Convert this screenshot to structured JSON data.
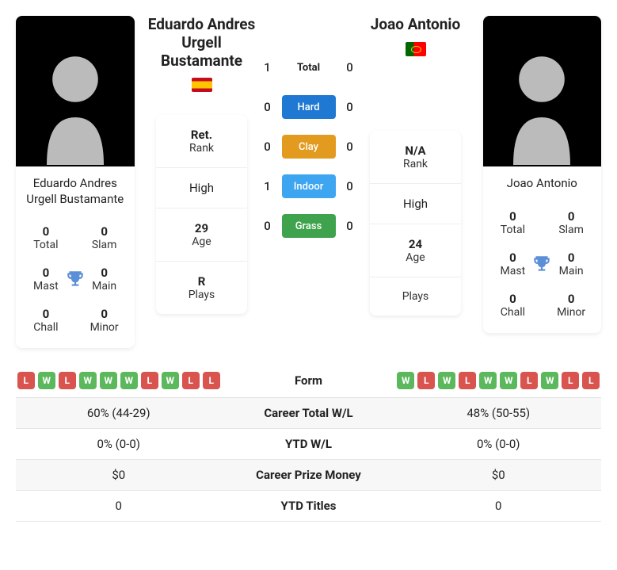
{
  "player1": {
    "name": "Eduardo Andres Urgell Bustamante",
    "flag": "es",
    "titles": {
      "total": {
        "val": "0",
        "lbl": "Total"
      },
      "slam": {
        "val": "0",
        "lbl": "Slam"
      },
      "mast": {
        "val": "0",
        "lbl": "Mast"
      },
      "main": {
        "val": "0",
        "lbl": "Main"
      },
      "chall": {
        "val": "0",
        "lbl": "Chall"
      },
      "minor": {
        "val": "0",
        "lbl": "Minor"
      }
    },
    "stats": {
      "rank_val": "Ret.",
      "rank_lbl": "Rank",
      "high": "High",
      "age_val": "29",
      "age_lbl": "Age",
      "plays_val": "R",
      "plays_lbl": "Plays"
    },
    "form": [
      "L",
      "W",
      "L",
      "W",
      "W",
      "W",
      "L",
      "W",
      "L",
      "L"
    ],
    "trophy_color": "#5b8fd8"
  },
  "player2": {
    "name": "Joao Antonio",
    "flag": "pt",
    "titles": {
      "total": {
        "val": "0",
        "lbl": "Total"
      },
      "slam": {
        "val": "0",
        "lbl": "Slam"
      },
      "mast": {
        "val": "0",
        "lbl": "Mast"
      },
      "main": {
        "val": "0",
        "lbl": "Main"
      },
      "chall": {
        "val": "0",
        "lbl": "Chall"
      },
      "minor": {
        "val": "0",
        "lbl": "Minor"
      }
    },
    "stats": {
      "rank_val": "N/A",
      "rank_lbl": "Rank",
      "high": "High",
      "age_val": "24",
      "age_lbl": "Age",
      "plays_val": "",
      "plays_lbl": "Plays"
    },
    "form": [
      "W",
      "L",
      "W",
      "L",
      "W",
      "W",
      "L",
      "W",
      "L",
      "L"
    ],
    "trophy_color": "#5b8fd8"
  },
  "h2h": {
    "rows": [
      {
        "p1": "1",
        "label": "Total",
        "p2": "0",
        "color": "",
        "text": "#222"
      },
      {
        "p1": "0",
        "label": "Hard",
        "p2": "0",
        "color": "#1f78d1",
        "text": "#fff"
      },
      {
        "p1": "0",
        "label": "Clay",
        "p2": "0",
        "color": "#e39b1f",
        "text": "#fff"
      },
      {
        "p1": "1",
        "label": "Indoor",
        "p2": "0",
        "color": "#3ea5f0",
        "text": "#fff"
      },
      {
        "p1": "0",
        "label": "Grass",
        "p2": "0",
        "color": "#3fa34d",
        "text": "#fff"
      }
    ]
  },
  "table": {
    "rows": [
      {
        "left_type": "form",
        "mid": "Form",
        "right_type": "form"
      },
      {
        "left": "60% (44-29)",
        "mid": "Career Total W/L",
        "right": "48% (50-55)"
      },
      {
        "left": "0% (0-0)",
        "mid": "YTD W/L",
        "right": "0% (0-0)"
      },
      {
        "left": "$0",
        "mid": "Career Prize Money",
        "right": "$0"
      },
      {
        "left": "0",
        "mid": "YTD Titles",
        "right": "0"
      }
    ]
  }
}
